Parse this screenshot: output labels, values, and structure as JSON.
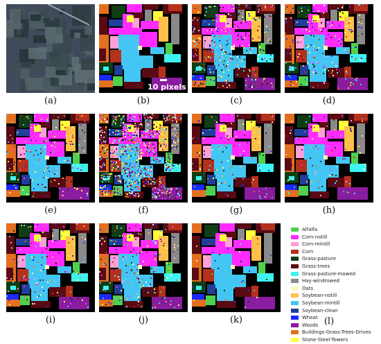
{
  "figure": {
    "panels": [
      {
        "caption": "(a)",
        "kind": "satellite"
      },
      {
        "caption": "(b)",
        "kind": "ground-truth"
      },
      {
        "caption": "(c)",
        "kind": "classification",
        "noise": 0.35
      },
      {
        "caption": "(d)",
        "kind": "classification",
        "noise": 0.22
      },
      {
        "caption": "(e)",
        "kind": "classification",
        "noise": 0.18
      },
      {
        "caption": "(f)",
        "kind": "classification",
        "noise": 0.9
      },
      {
        "caption": "(g)",
        "kind": "classification",
        "noise": 0.12
      },
      {
        "caption": "(h)",
        "kind": "classification",
        "noise": 0.1
      },
      {
        "caption": "(i)",
        "kind": "classification",
        "noise": 0.14
      },
      {
        "caption": "(j)",
        "kind": "classification",
        "noise": 0.2
      },
      {
        "caption": "(k)",
        "kind": "classification",
        "noise": 0.05
      },
      {
        "caption": "(l)",
        "kind": "legend"
      }
    ],
    "scale_bar_label": "10 pixels"
  },
  "legend": [
    {
      "label": "Alfalfa",
      "color": "#4fd14f"
    },
    {
      "label": "Corn-notill",
      "color": "#ff2bff"
    },
    {
      "label": "Corn-mintill",
      "color": "#ff9fd8"
    },
    {
      "label": "Corn",
      "color": "#b5311c"
    },
    {
      "label": "Grass-pasture",
      "color": "#0f3d14"
    },
    {
      "label": "Grass-trees",
      "color": "#5a0a12"
    },
    {
      "label": "Grass-pasture-mowed",
      "color": "#3ff2f2"
    },
    {
      "label": "Hay-windrowed",
      "color": "#8a8a8a"
    },
    {
      "label": "Oats",
      "color": "#fff8b8"
    },
    {
      "label": "Soybean-notill",
      "color": "#ffc04a"
    },
    {
      "label": "Soybean-mintill",
      "color": "#43c6f3"
    },
    {
      "label": "Soybean-clean",
      "color": "#1f3f99"
    },
    {
      "label": "Wheat",
      "color": "#1a2aff"
    },
    {
      "label": "Woods",
      "color": "#8a1ca0"
    },
    {
      "label": "Buildings-Grass-Trees-Drives",
      "color": "#e46f1f"
    },
    {
      "label": "Stone-Steel-Towers",
      "color": "#ffff3a"
    }
  ]
}
